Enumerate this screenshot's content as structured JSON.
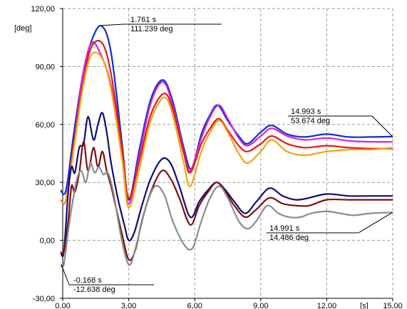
{
  "chart_data": {
    "type": "line",
    "title": "",
    "xlabel": "",
    "ylabel": "[deg]",
    "x_unit_label": "[s]",
    "xlim": [
      0,
      15
    ],
    "ylim": [
      -30,
      120
    ],
    "grid": true,
    "x_ticks": [
      0,
      3,
      6,
      9,
      12,
      15
    ],
    "x_tick_labels": [
      "0,00",
      "3,00",
      "6,00",
      "9,00",
      "12,00",
      "15,00"
    ],
    "y_ticks": [
      -30,
      0,
      30,
      60,
      90,
      120
    ],
    "y_tick_labels": [
      "-30,00",
      "0,00",
      "30,00",
      "60,00",
      "90,00",
      "120,00"
    ],
    "series": [
      {
        "color": "#0b2fd6",
        "x": [
          -0.2,
          0.15,
          0.5,
          0.9,
          1.3,
          1.76,
          2.2,
          2.7,
          3.0,
          3.5,
          4.0,
          4.55,
          5.0,
          5.5,
          5.85,
          6.3,
          6.7,
          7.05,
          7.5,
          8.0,
          8.4,
          9.0,
          9.5,
          10.2,
          11.0,
          12.0,
          13.0,
          14.0,
          15.0
        ],
        "y": [
          26,
          26,
          55,
          85,
          103,
          111,
          97,
          50,
          21,
          48,
          73,
          83,
          72,
          48,
          37,
          55,
          65,
          70,
          62,
          54,
          50,
          56,
          59.5,
          55,
          53.5,
          55,
          53.5,
          53.5,
          53.7
        ]
      },
      {
        "color": "#d326d3",
        "x": [
          -0.2,
          0.15,
          0.5,
          0.9,
          1.3,
          1.7,
          2.2,
          2.7,
          3.0,
          3.5,
          4.0,
          4.55,
          5.0,
          5.5,
          5.8,
          6.3,
          6.7,
          7.1,
          7.5,
          8.0,
          8.4,
          9.0,
          9.5,
          10.2,
          11.0,
          12.0,
          13.0,
          14.0,
          15.0
        ],
        "y": [
          21,
          21,
          50,
          85,
          102,
          97,
          80,
          45,
          19,
          45,
          71,
          82,
          70,
          46,
          36,
          53,
          64,
          70,
          63,
          53,
          49,
          54,
          58,
          54,
          52,
          53,
          51.5,
          51,
          51
        ]
      },
      {
        "color": "#e41a1a",
        "x": [
          -0.2,
          0.15,
          0.5,
          0.9,
          1.3,
          1.8,
          2.2,
          2.7,
          3.0,
          3.5,
          4.0,
          4.6,
          5.0,
          5.5,
          5.8,
          6.3,
          6.7,
          7.1,
          7.5,
          8.0,
          8.4,
          9.0,
          9.5,
          10.2,
          11.0,
          12.0,
          13.0,
          14.0,
          15.0
        ],
        "y": [
          21,
          21,
          50,
          80,
          100,
          102,
          86,
          48,
          22,
          42,
          65,
          76,
          68,
          45,
          35,
          50,
          58,
          63,
          57,
          49,
          46,
          50,
          54,
          50,
          48,
          49,
          48,
          47.5,
          47.5
        ]
      },
      {
        "color": "#f2a411",
        "x": [
          -0.2,
          0.15,
          0.5,
          0.9,
          1.3,
          1.8,
          2.2,
          2.7,
          3.0,
          3.5,
          4.0,
          4.6,
          5.0,
          5.5,
          5.8,
          6.3,
          6.7,
          7.1,
          7.5,
          8.0,
          8.4,
          9.0,
          9.5,
          10.2,
          11.0,
          12.0,
          13.0,
          14.0,
          15.0
        ],
        "y": [
          21,
          21,
          47,
          78,
          96,
          94,
          78,
          42,
          17,
          38,
          62,
          74,
          65,
          40,
          28,
          46,
          56,
          62,
          56,
          45,
          40,
          46,
          52,
          46,
          44,
          46,
          47,
          47,
          48
        ]
      },
      {
        "color": "#0d0d78",
        "x": [
          -0.2,
          0.05,
          0.25,
          0.4,
          0.55,
          0.75,
          0.95,
          1.15,
          1.4,
          1.6,
          1.8,
          2.0,
          2.2,
          2.5,
          2.8,
          3.0,
          3.25,
          3.6,
          4.0,
          4.5,
          4.9,
          5.3,
          5.8,
          6.2,
          6.6,
          7.0,
          7.4,
          7.8,
          8.3,
          8.8,
          9.4,
          10.0,
          10.6,
          11.2,
          12.0,
          13.0,
          14.0,
          15.0
        ],
        "y": [
          -6,
          -6,
          25,
          38,
          35,
          48,
          50,
          64,
          52,
          60,
          66,
          56,
          40,
          22,
          8,
          0,
          4,
          18,
          32,
          42,
          40,
          28,
          12,
          20,
          26,
          30,
          26,
          20,
          14,
          20,
          27,
          23,
          21,
          22,
          24,
          23,
          23,
          23
        ]
      },
      {
        "color": "#7a0e0e",
        "x": [
          -0.2,
          0.05,
          0.25,
          0.4,
          0.55,
          0.75,
          0.95,
          1.15,
          1.4,
          1.6,
          1.8,
          2.0,
          2.2,
          2.4,
          2.7,
          3.0,
          3.3,
          3.6,
          4.0,
          4.5,
          4.9,
          5.3,
          5.8,
          6.2,
          6.6,
          7.0,
          7.4,
          7.8,
          8.3,
          8.8,
          9.4,
          10.0,
          10.6,
          11.2,
          12.0,
          13.0,
          14.0,
          15.0
        ],
        "y": [
          -6,
          -6,
          10,
          28,
          25,
          35,
          51,
          36,
          48,
          38,
          46,
          36,
          28,
          18,
          3,
          -10,
          -5,
          10,
          25,
          36,
          32,
          22,
          8,
          18,
          25,
          30,
          25,
          18,
          12,
          16,
          22,
          19,
          18,
          18,
          21,
          21,
          21,
          21
        ]
      },
      {
        "color": "#8c8c8c",
        "x": [
          -0.2,
          0.05,
          0.25,
          0.45,
          0.65,
          0.85,
          1.05,
          1.25,
          1.45,
          1.65,
          1.85,
          2.05,
          2.3,
          2.6,
          2.9,
          3.1,
          3.4,
          3.8,
          4.2,
          4.6,
          5.0,
          5.5,
          5.9,
          6.3,
          6.7,
          7.1,
          7.5,
          8.0,
          8.4,
          8.8,
          9.3,
          9.8,
          10.3,
          10.8,
          11.3,
          12.0,
          12.6,
          13.2,
          14.0,
          15.0
        ],
        "y": [
          -12.6,
          -12.6,
          5,
          20,
          32,
          36,
          30,
          40,
          35,
          38,
          34,
          35,
          25,
          5,
          -10,
          -12,
          0,
          18,
          28,
          24,
          10,
          -2,
          -4,
          10,
          22,
          28,
          22,
          10,
          6,
          10,
          18,
          14,
          12,
          12,
          14,
          15,
          14,
          13,
          14,
          14.5
        ]
      }
    ],
    "annotations": [
      {
        "x": 1.761,
        "y": 111.239,
        "line1": "1.761 s",
        "line2": "111.239 deg"
      },
      {
        "x": 14.993,
        "y": 53.674,
        "line1": "14.993 s",
        "line2": "53.674 deg"
      },
      {
        "x": 14.991,
        "y": 14.486,
        "line1": "14.991 s",
        "line2": "14.486 deg"
      },
      {
        "x": -0.168,
        "y": -12.638,
        "line1": "-0.168 s",
        "line2": "-12.638 deg"
      }
    ]
  }
}
